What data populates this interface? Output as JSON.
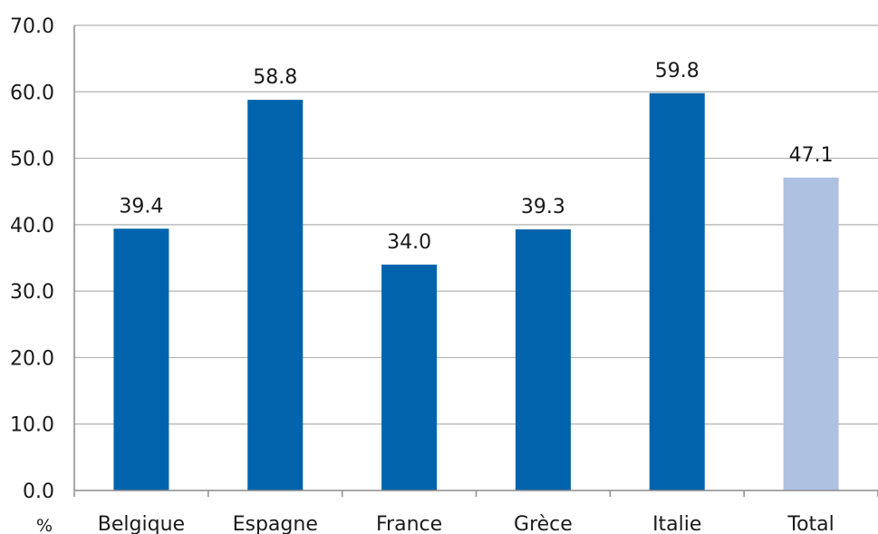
{
  "chart_data": {
    "type": "bar",
    "unit_label": "%",
    "categories": [
      "Belgique",
      "Espagne",
      "France",
      "Grèce",
      "Italie",
      "Total"
    ],
    "values": [
      39.4,
      58.8,
      34.0,
      39.3,
      59.8,
      47.1
    ],
    "value_labels": [
      "39.4",
      "58.8",
      "34.0",
      "39.3",
      "59.8",
      "47.1"
    ],
    "ylim": [
      0,
      70
    ],
    "yticks": [
      "0.0",
      "10.0",
      "20.0",
      "30.0",
      "40.0",
      "50.0",
      "60.0",
      "70.0"
    ],
    "grid": true,
    "legend": "none",
    "colors": {
      "bar": "#0063AC",
      "highlight_bar": "#AEC1E1",
      "grid": "#b0b0b0",
      "axis": "#8c8c8c"
    },
    "highlight_category": "Total"
  }
}
